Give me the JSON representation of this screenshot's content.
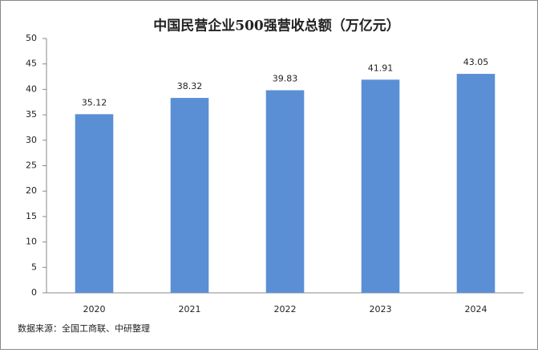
{
  "chart_data": {
    "type": "bar",
    "title": "中国民营企业500强营收总额（万亿元）",
    "categories": [
      "2020",
      "2021",
      "2022",
      "2023",
      "2024"
    ],
    "values": [
      35.12,
      38.32,
      39.83,
      41.91,
      43.05
    ],
    "color": "#5a8fd6",
    "ylim": [
      0,
      50
    ],
    "yticks": [
      0,
      5,
      10,
      15,
      20,
      25,
      30,
      35,
      40,
      45,
      50
    ],
    "grid": false,
    "source": "数据来源：全国工商联、中研整理"
  }
}
